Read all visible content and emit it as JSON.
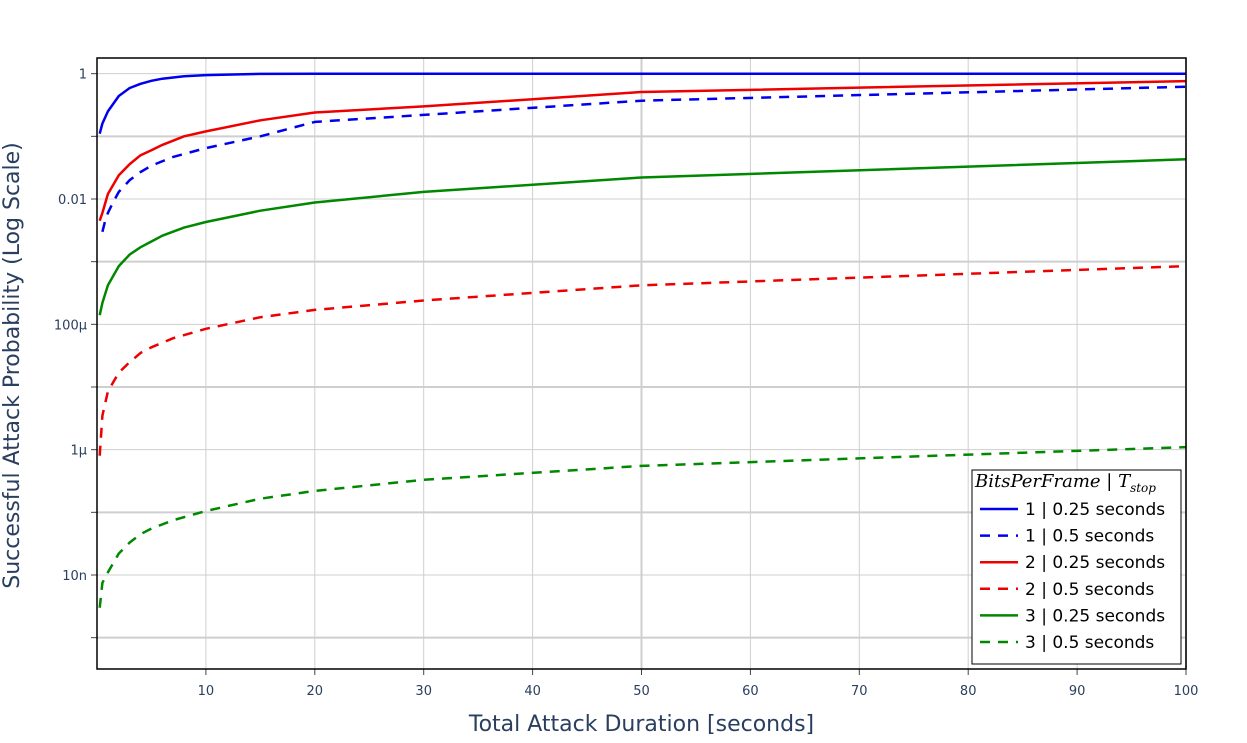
{
  "chart_data": {
    "type": "line",
    "xlabel": "Total Attack Duration [seconds]",
    "ylabel": "Successful Attack Probability (Log Scale)",
    "x_scale": "linear",
    "y_scale": "log",
    "xlim": [
      0,
      100
    ],
    "ylim_log10": [
      -9.5,
      0.25
    ],
    "x_ticks": [
      10,
      20,
      30,
      40,
      50,
      60,
      70,
      80,
      90,
      100
    ],
    "y_ticks": [
      {
        "value": 1,
        "label": "1"
      },
      {
        "value": 0.01,
        "label": "0.01"
      },
      {
        "value": 0.0001,
        "label": "100μ"
      },
      {
        "value": 1e-06,
        "label": "1μ"
      },
      {
        "value": 1e-08,
        "label": "10n"
      }
    ],
    "grid": true,
    "legend": {
      "title_main": "BitsPerFrame | T",
      "title_sub": "stop",
      "placement": "bottom-right"
    },
    "series": [
      {
        "name": "1 | 0.25 seconds",
        "color": "#0000ee",
        "dash": "solid",
        "x": [
          0.25,
          0.5,
          1,
          2,
          3,
          4,
          5,
          6,
          8,
          10,
          15,
          20,
          30,
          50,
          100
        ],
        "y": [
          0.11,
          0.16,
          0.25,
          0.44,
          0.59,
          0.69,
          0.77,
          0.83,
          0.91,
          0.95,
          0.99,
          1.0,
          1.0,
          1.0,
          1.0
        ]
      },
      {
        "name": "1 | 0.5 seconds",
        "color": "#0000ee",
        "dash": "dash",
        "x": [
          0.5,
          0.75,
          1,
          1.5,
          2,
          3,
          4,
          5,
          7,
          10,
          15,
          20,
          30,
          50,
          100
        ],
        "y": [
          0.003,
          0.0045,
          0.006,
          0.009,
          0.013,
          0.02,
          0.027,
          0.034,
          0.047,
          0.065,
          0.1,
          0.17,
          0.22,
          0.37,
          0.62
        ]
      },
      {
        "name": "2 | 0.25 seconds",
        "color": "#ee0000",
        "dash": "solid",
        "x": [
          0.25,
          0.5,
          1,
          2,
          3,
          4,
          5,
          6,
          8,
          10,
          15,
          20,
          30,
          50,
          100
        ],
        "y": [
          0.0045,
          0.006,
          0.012,
          0.024,
          0.036,
          0.05,
          0.06,
          0.073,
          0.1,
          0.12,
          0.18,
          0.24,
          0.3,
          0.51,
          0.76
        ]
      },
      {
        "name": "2 | 0.5 seconds",
        "color": "#ee0000",
        "dash": "dash",
        "x": [
          0.25,
          0.5,
          1,
          2,
          3,
          4,
          5,
          7,
          10,
          15,
          20,
          30,
          50,
          100
        ],
        "y": [
          8e-07,
          3.5e-06,
          8.5e-06,
          1.7e-05,
          2.5e-05,
          3.5e-05,
          4.3e-05,
          6e-05,
          8.5e-05,
          0.00013,
          0.00017,
          0.00024,
          0.00042,
          0.00085
        ]
      },
      {
        "name": "3 | 0.25 seconds",
        "color": "#008800",
        "dash": "solid",
        "x": [
          0.25,
          0.5,
          1,
          2,
          3,
          4,
          5,
          6,
          8,
          10,
          15,
          20,
          30,
          50,
          100
        ],
        "y": [
          0.00014,
          0.00022,
          0.00042,
          0.00085,
          0.0013,
          0.0017,
          0.0021,
          0.0026,
          0.0035,
          0.0043,
          0.0065,
          0.0088,
          0.013,
          0.022,
          0.043
        ]
      },
      {
        "name": "3 | 0.5 seconds",
        "color": "#008800",
        "dash": "dash",
        "x": [
          0.25,
          0.5,
          1,
          2,
          3,
          4,
          5,
          7,
          10,
          15,
          20,
          30,
          50,
          100
        ],
        "y": [
          3e-09,
          7.5e-09,
          1.1e-08,
          2.2e-08,
          3.3e-08,
          4.5e-08,
          5.5e-08,
          7.5e-08,
          1.05e-07,
          1.65e-07,
          2.2e-07,
          3.3e-07,
          5.5e-07,
          1.1e-06
        ]
      }
    ]
  }
}
